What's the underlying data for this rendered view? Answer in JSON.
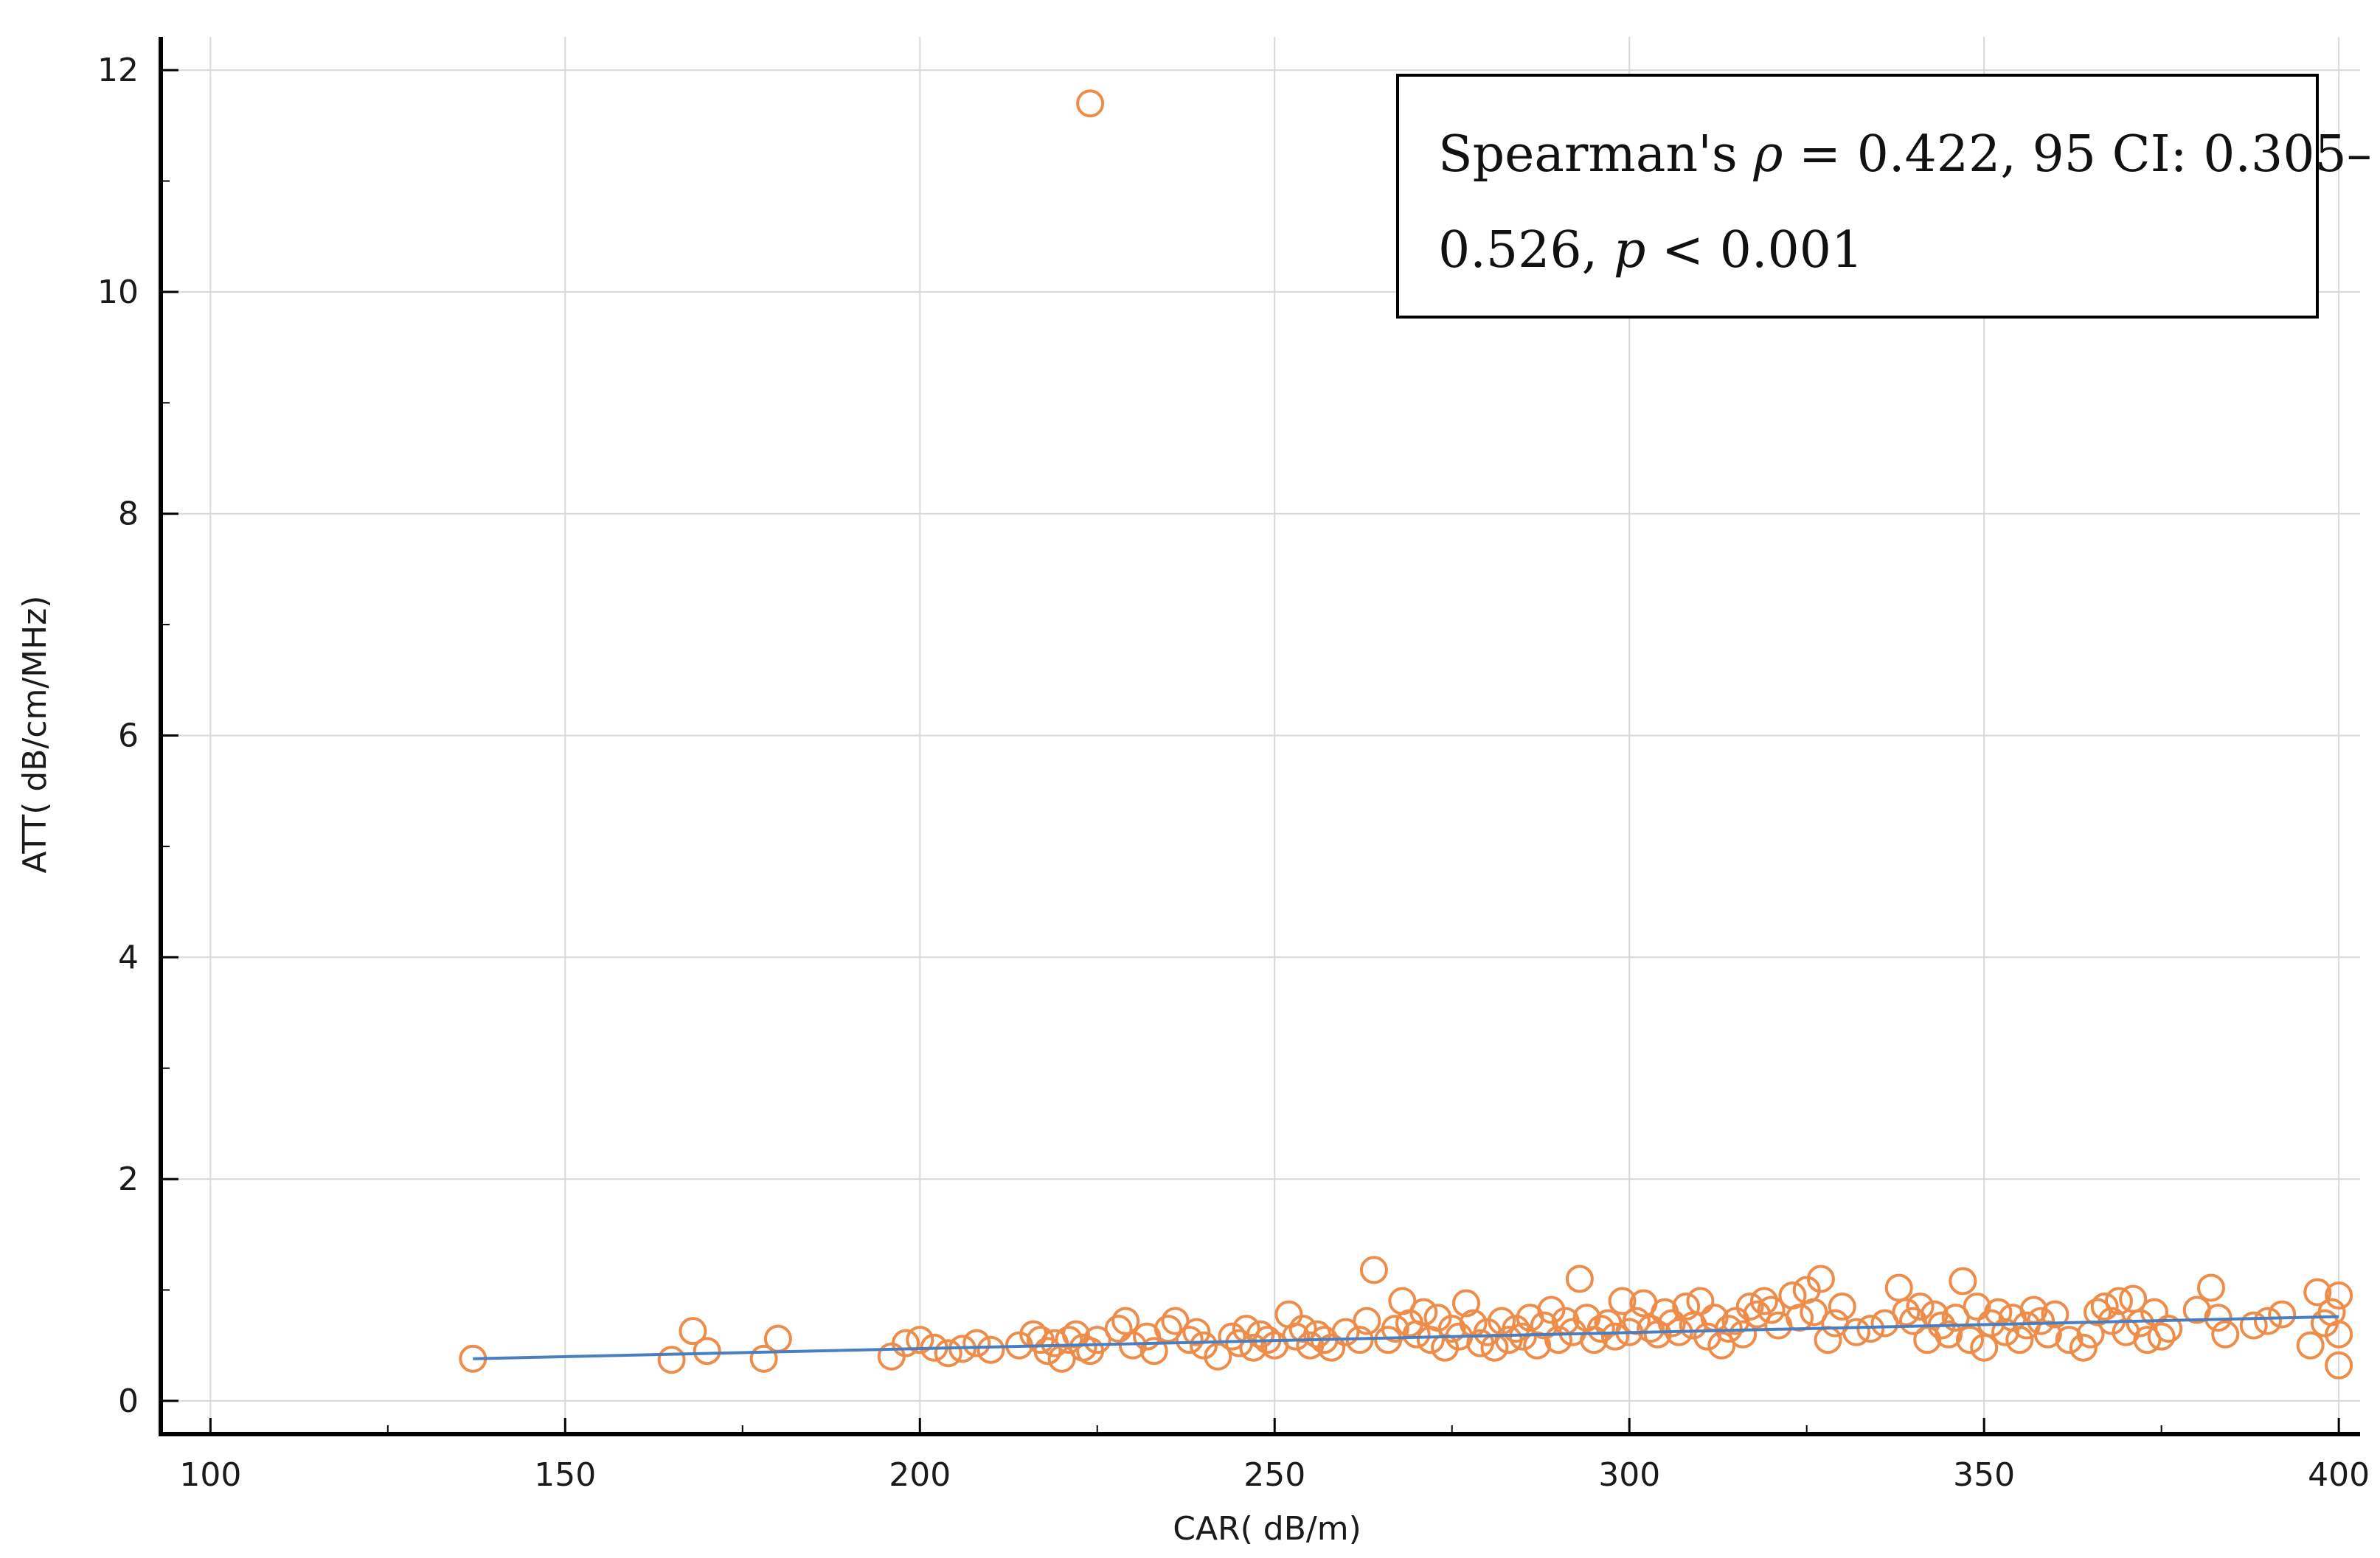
{
  "chart_data": {
    "type": "scatter",
    "xlabel": "CAR( dB/m)",
    "ylabel": "ATT( dB/cm/MHz)",
    "xlim": [
      93,
      403
    ],
    "ylim": [
      -0.3,
      12.3
    ],
    "x_ticks": [
      100,
      150,
      200,
      250,
      300,
      350,
      400
    ],
    "x_tick_labels": [
      "100",
      "150",
      "200",
      "250",
      "300",
      "350",
      "400"
    ],
    "y_ticks": [
      0,
      2,
      4,
      6,
      8,
      10,
      12
    ],
    "y_tick_labels": [
      "0",
      "2",
      "4",
      "6",
      "8",
      "10",
      "12"
    ],
    "grid": true,
    "annotation": {
      "line1_a": "Spearman's ",
      "line1_rho": "ρ",
      "line1_b": " = 0.422, 95 CI: 0.305–",
      "line2_a": "0.526, ",
      "line2_p": "p",
      "line2_b": " < 0.001",
      "placement": "top-right"
    },
    "colors": {
      "points": "#ee8c4a",
      "fit_line": "#4a7ec2",
      "grid": "#d9d9d9",
      "axis": "#000000"
    },
    "fit_line": {
      "x": [
        137,
        400
      ],
      "y": [
        0.38,
        0.76
      ]
    },
    "points": [
      [
        137,
        0.38
      ],
      [
        165,
        0.37
      ],
      [
        168,
        0.63
      ],
      [
        170,
        0.45
      ],
      [
        178,
        0.38
      ],
      [
        180,
        0.56
      ],
      [
        196,
        0.4
      ],
      [
        198,
        0.52
      ],
      [
        200,
        0.55
      ],
      [
        202,
        0.48
      ],
      [
        204,
        0.43
      ],
      [
        206,
        0.47
      ],
      [
        208,
        0.52
      ],
      [
        210,
        0.46
      ],
      [
        214,
        0.5
      ],
      [
        216,
        0.6
      ],
      [
        217,
        0.55
      ],
      [
        218,
        0.45
      ],
      [
        219,
        0.52
      ],
      [
        220,
        0.38
      ],
      [
        221,
        0.55
      ],
      [
        222,
        0.6
      ],
      [
        223,
        0.48
      ],
      [
        224,
        0.45
      ],
      [
        225,
        0.55
      ],
      [
        228,
        0.65
      ],
      [
        229,
        0.72
      ],
      [
        230,
        0.5
      ],
      [
        232,
        0.58
      ],
      [
        233,
        0.45
      ],
      [
        235,
        0.65
      ],
      [
        236,
        0.72
      ],
      [
        238,
        0.55
      ],
      [
        239,
        0.62
      ],
      [
        240,
        0.5
      ],
      [
        242,
        0.4
      ],
      [
        244,
        0.58
      ],
      [
        245,
        0.52
      ],
      [
        246,
        0.65
      ],
      [
        247,
        0.48
      ],
      [
        248,
        0.6
      ],
      [
        249,
        0.55
      ],
      [
        250,
        0.5
      ],
      [
        252,
        0.78
      ],
      [
        253,
        0.58
      ],
      [
        254,
        0.65
      ],
      [
        255,
        0.5
      ],
      [
        256,
        0.6
      ],
      [
        257,
        0.55
      ],
      [
        258,
        0.48
      ],
      [
        260,
        0.62
      ],
      [
        262,
        0.55
      ],
      [
        263,
        0.72
      ],
      [
        264,
        1.18
      ],
      [
        266,
        0.55
      ],
      [
        267,
        0.65
      ],
      [
        268,
        0.9
      ],
      [
        269,
        0.7
      ],
      [
        270,
        0.6
      ],
      [
        271,
        0.8
      ],
      [
        272,
        0.55
      ],
      [
        273,
        0.75
      ],
      [
        274,
        0.48
      ],
      [
        275,
        0.65
      ],
      [
        276,
        0.58
      ],
      [
        277,
        0.88
      ],
      [
        278,
        0.7
      ],
      [
        279,
        0.52
      ],
      [
        280,
        0.62
      ],
      [
        281,
        0.48
      ],
      [
        282,
        0.72
      ],
      [
        283,
        0.55
      ],
      [
        284,
        0.65
      ],
      [
        285,
        0.58
      ],
      [
        286,
        0.75
      ],
      [
        287,
        0.5
      ],
      [
        288,
        0.68
      ],
      [
        289,
        0.82
      ],
      [
        290,
        0.55
      ],
      [
        291,
        0.72
      ],
      [
        292,
        0.62
      ],
      [
        293,
        1.1
      ],
      [
        294,
        0.75
      ],
      [
        295,
        0.55
      ],
      [
        296,
        0.65
      ],
      [
        297,
        0.7
      ],
      [
        298,
        0.58
      ],
      [
        299,
        0.9
      ],
      [
        300,
        0.62
      ],
      [
        301,
        0.72
      ],
      [
        302,
        0.88
      ],
      [
        303,
        0.65
      ],
      [
        304,
        0.6
      ],
      [
        305,
        0.8
      ],
      [
        306,
        0.7
      ],
      [
        307,
        0.62
      ],
      [
        308,
        0.85
      ],
      [
        309,
        0.68
      ],
      [
        310,
        0.9
      ],
      [
        311,
        0.58
      ],
      [
        312,
        0.75
      ],
      [
        313,
        0.5
      ],
      [
        314,
        0.65
      ],
      [
        315,
        0.72
      ],
      [
        316,
        0.6
      ],
      [
        317,
        0.85
      ],
      [
        318,
        0.78
      ],
      [
        319,
        0.9
      ],
      [
        320,
        0.82
      ],
      [
        321,
        0.68
      ],
      [
        323,
        0.95
      ],
      [
        324,
        0.75
      ],
      [
        325,
        1.0
      ],
      [
        326,
        0.8
      ],
      [
        327,
        1.1
      ],
      [
        328,
        0.55
      ],
      [
        329,
        0.7
      ],
      [
        330,
        0.85
      ],
      [
        332,
        0.62
      ],
      [
        334,
        0.65
      ],
      [
        336,
        0.7
      ],
      [
        338,
        1.02
      ],
      [
        339,
        0.8
      ],
      [
        340,
        0.72
      ],
      [
        341,
        0.85
      ],
      [
        342,
        0.55
      ],
      [
        343,
        0.78
      ],
      [
        344,
        0.68
      ],
      [
        345,
        0.6
      ],
      [
        346,
        0.75
      ],
      [
        347,
        1.08
      ],
      [
        348,
        0.55
      ],
      [
        349,
        0.85
      ],
      [
        350,
        0.48
      ],
      [
        351,
        0.7
      ],
      [
        352,
        0.8
      ],
      [
        353,
        0.62
      ],
      [
        354,
        0.75
      ],
      [
        355,
        0.55
      ],
      [
        356,
        0.68
      ],
      [
        357,
        0.82
      ],
      [
        358,
        0.72
      ],
      [
        359,
        0.6
      ],
      [
        360,
        0.78
      ],
      [
        362,
        0.55
      ],
      [
        364,
        0.48
      ],
      [
        365,
        0.6
      ],
      [
        366,
        0.8
      ],
      [
        367,
        0.85
      ],
      [
        368,
        0.72
      ],
      [
        369,
        0.9
      ],
      [
        370,
        0.62
      ],
      [
        371,
        0.92
      ],
      [
        372,
        0.7
      ],
      [
        373,
        0.55
      ],
      [
        374,
        0.8
      ],
      [
        375,
        0.58
      ],
      [
        376,
        0.65
      ],
      [
        380,
        0.82
      ],
      [
        382,
        1.02
      ],
      [
        383,
        0.75
      ],
      [
        384,
        0.6
      ],
      [
        388,
        0.68
      ],
      [
        390,
        0.72
      ],
      [
        392,
        0.78
      ],
      [
        396,
        0.5
      ],
      [
        397,
        0.98
      ],
      [
        398,
        0.7
      ],
      [
        399,
        0.8
      ],
      [
        400,
        0.95
      ],
      [
        400,
        0.6
      ],
      [
        400,
        0.32
      ],
      [
        224,
        11.7
      ]
    ]
  }
}
